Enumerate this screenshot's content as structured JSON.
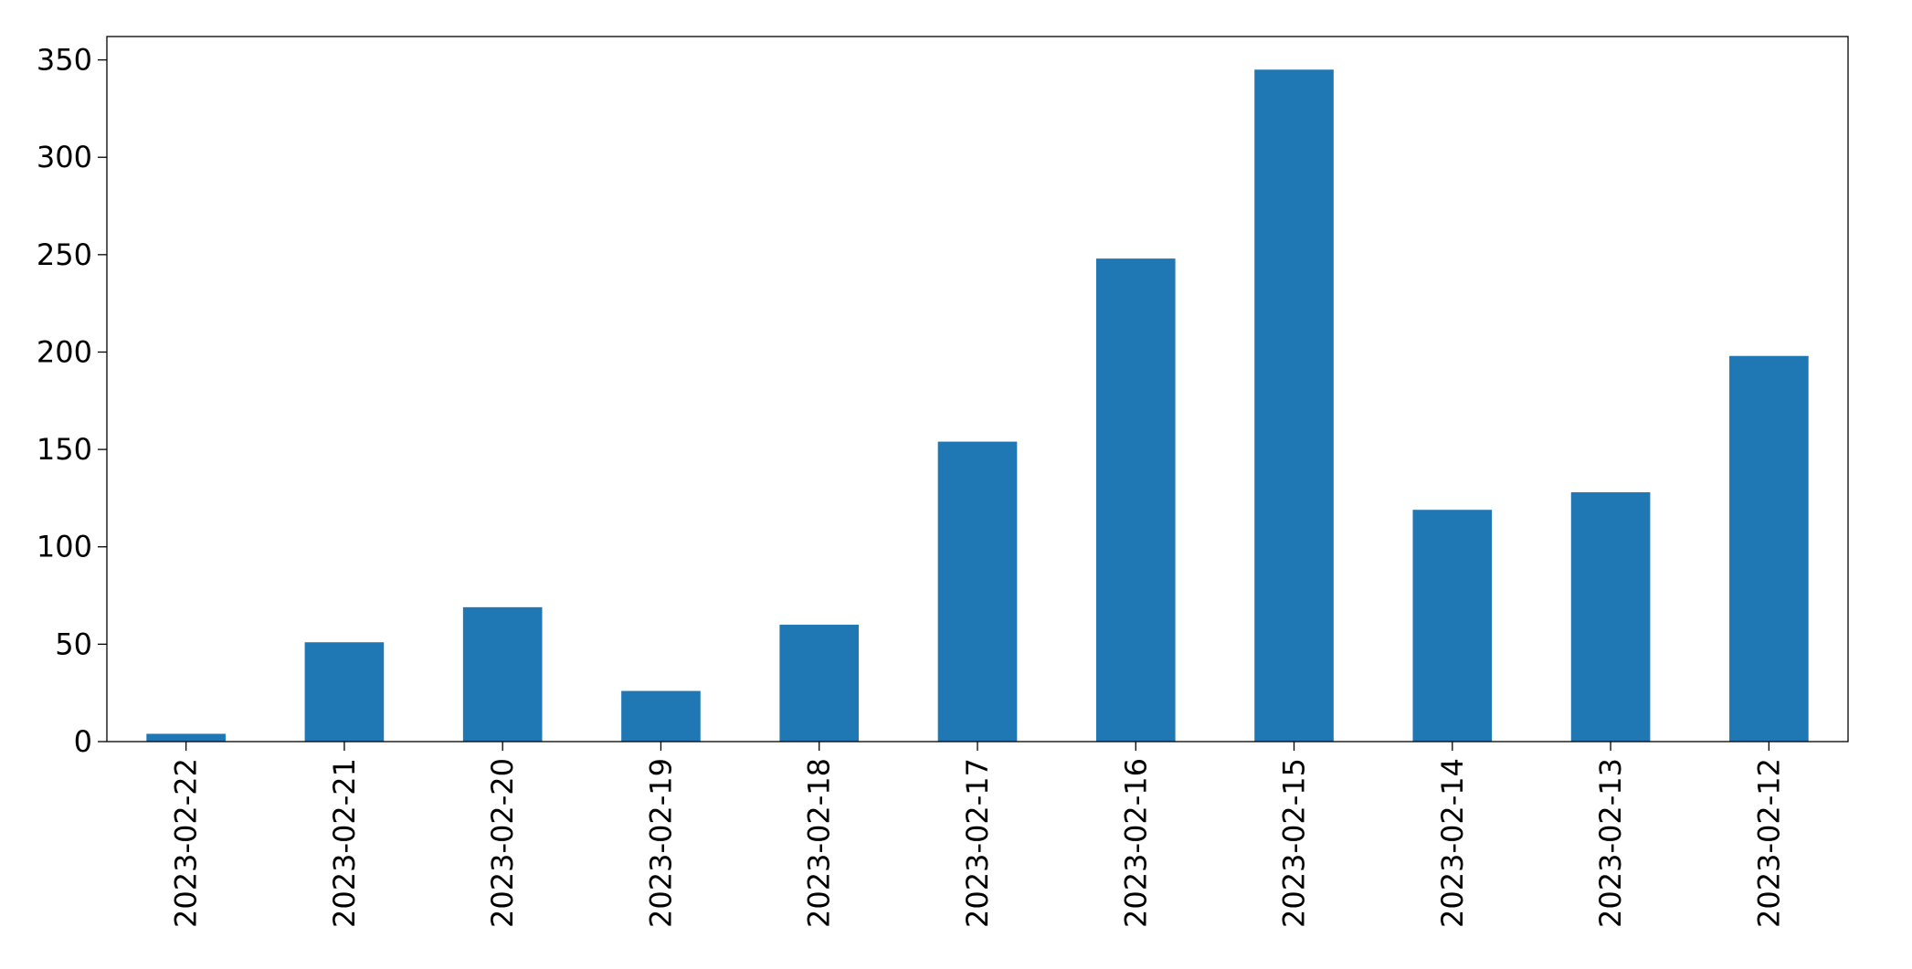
{
  "chart_data": {
    "type": "bar",
    "categories": [
      "2023-02-22",
      "2023-02-21",
      "2023-02-20",
      "2023-02-19",
      "2023-02-18",
      "2023-02-17",
      "2023-02-16",
      "2023-02-15",
      "2023-02-14",
      "2023-02-13",
      "2023-02-12"
    ],
    "values": [
      4,
      51,
      69,
      26,
      60,
      154,
      248,
      345,
      119,
      128,
      198
    ],
    "ylim": [
      0,
      362
    ],
    "yticks": [
      0,
      50,
      100,
      150,
      200,
      250,
      300,
      350
    ],
    "bar_color": "#1f77b4",
    "grid": false,
    "legend": "none"
  }
}
